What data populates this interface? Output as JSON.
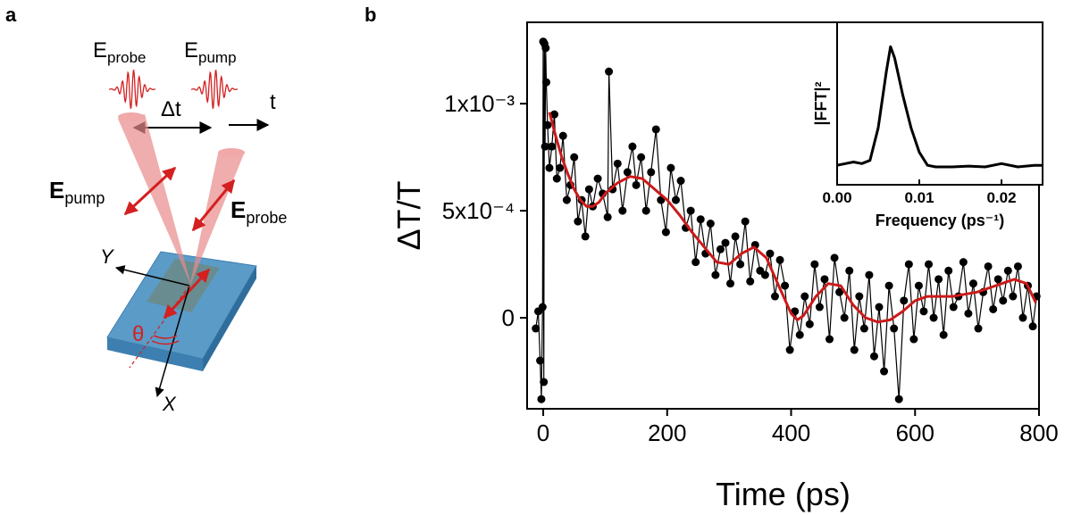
{
  "panel_a": {
    "label": "a",
    "probe_pulse": {
      "symbol": "E",
      "sub": "probe"
    },
    "pump_pulse": {
      "symbol": "E",
      "sub": "pump"
    },
    "delay": "Δt",
    "time": "t",
    "pump_field": {
      "symbol": "E",
      "sub": "pump"
    },
    "probe_field": {
      "symbol": "E",
      "sub": "probe"
    },
    "axis_y": "Y",
    "axis_x": "X",
    "angle": "θ"
  },
  "panel_b": {
    "label": "b"
  },
  "chart_data": [
    {
      "type": "line",
      "x_label": "Time (ps)",
      "y_label": "ΔT/T",
      "xlim": [
        -26,
        800
      ],
      "xticks": [
        0,
        200,
        400,
        600,
        800
      ],
      "ylim": [
        -0.000425,
        0.00138
      ],
      "yticks": [
        {
          "value": 0,
          "label": "0"
        },
        {
          "value": 0.0005,
          "label": "5x10⁻⁴"
        },
        {
          "value": 0.001,
          "label": "1x10⁻³"
        }
      ],
      "series": [
        {
          "color": "#000000",
          "markers": true,
          "x": [
            -12,
            -8,
            -5,
            -3,
            -1,
            0,
            1,
            2,
            3,
            4,
            5,
            7,
            10,
            14,
            18,
            22,
            27,
            32,
            38,
            44,
            50,
            56,
            62,
            68,
            74,
            80,
            88,
            96,
            104,
            106,
            112,
            120,
            128,
            136,
            144,
            150,
            158,
            166,
            174,
            182,
            190,
            198,
            206,
            214,
            222,
            230,
            238,
            246,
            254,
            262,
            270,
            278,
            286,
            294,
            302,
            310,
            318,
            326,
            334,
            342,
            350,
            358,
            366,
            374,
            382,
            390,
            398,
            406,
            414,
            422,
            430,
            438,
            446,
            454,
            462,
            470,
            478,
            486,
            494,
            502,
            510,
            518,
            526,
            534,
            542,
            550,
            558,
            566,
            574,
            582,
            590,
            598,
            606,
            614,
            622,
            630,
            638,
            646,
            654,
            662,
            670,
            678,
            686,
            694,
            702,
            710,
            718,
            726,
            734,
            742,
            750,
            758,
            766,
            774,
            782,
            790,
            796
          ],
          "values": [
            -5e-05,
            3e-05,
            -0.0002,
            -0.00038,
            5e-05,
            0.00129,
            -0.0003,
            0.00128,
            0.0008,
            0.00126,
            0.0011,
            0.0009,
            0.0007,
            0.0008,
            0.00095,
            0.00065,
            0.0007,
            0.00085,
            0.00055,
            0.00062,
            0.00075,
            0.00045,
            0.00055,
            0.00038,
            0.0006,
            0.00052,
            0.00065,
            0.00058,
            0.00047,
            0.00115,
            0.0006,
            0.00072,
            0.0005,
            0.00068,
            0.0008,
            0.00062,
            0.00075,
            0.0005,
            0.00068,
            0.00088,
            0.00055,
            0.0004,
            0.0007,
            0.00055,
            0.00064,
            0.00042,
            0.0005,
            0.00026,
            0.00046,
            0.0003,
            0.00044,
            0.0002,
            0.00032,
            0.00035,
            0.00016,
            0.00038,
            0.00025,
            0.00045,
            0.00017,
            0.00034,
            0.00022,
            0.0002,
            0.0003,
            0.0001,
            0.00027,
            0.00015,
            -0.00015,
            3e-05,
            -8e-05,
            0.0001,
            -3e-05,
            0.00025,
            5e-05,
            0.00018,
            -0.0001,
            0.00028,
            0.00012,
            0.0,
            0.00022,
            -0.00015,
            0.0001,
            -5e-05,
            0.0002,
            -0.00018,
            5e-05,
            -0.00025,
            0.00015,
            -5e-05,
            -0.00038,
            8e-05,
            0.00025,
            -0.0001,
            0.00015,
            3e-05,
            0.00025,
            0.0,
            0.00018,
            -8e-05,
            0.00022,
            5e-05,
            0.0001,
            0.00026,
            2e-05,
            0.00016,
            -5e-05,
            0.00012,
            0.00024,
            4e-05,
            0.00018,
            8e-05,
            0.00022,
            0.0001,
            0.00024,
            0.0,
            0.00015,
            -4e-05,
            0.0001
          ]
        },
        {
          "color": "#cc1a1a",
          "markers": false,
          "x": [
            10,
            20,
            30,
            40,
            50,
            60,
            70,
            80,
            90,
            100,
            120,
            140,
            160,
            180,
            200,
            220,
            240,
            260,
            280,
            300,
            320,
            340,
            360,
            380,
            400,
            410,
            420,
            440,
            460,
            480,
            500,
            520,
            540,
            560,
            580,
            600,
            620,
            640,
            660,
            680,
            700,
            720,
            740,
            760,
            780,
            795
          ],
          "values": [
            0.00096,
            0.00085,
            0.00075,
            0.00067,
            0.0006,
            0.00055,
            0.00052,
            0.00052,
            0.00054,
            0.00058,
            0.00063,
            0.00066,
            0.00065,
            0.0006,
            0.00055,
            0.00048,
            0.0004,
            0.00033,
            0.00026,
            0.00025,
            0.0003,
            0.00033,
            0.00028,
            0.00015,
            2e-05,
            -1e-05,
            1e-05,
            0.0001,
            0.00016,
            0.00015,
            6e-05,
            0.0,
            -2e-05,
            -1e-05,
            3e-05,
            8e-05,
            0.0001,
            0.0001,
            0.0001,
            0.00011,
            0.00012,
            0.00014,
            0.00016,
            0.00018,
            0.00016,
            7e-05
          ]
        }
      ]
    },
    {
      "type": "line",
      "x_label": "Frequency (ps⁻¹)",
      "y_label": "|FFT|²",
      "xlim": [
        0,
        0.025
      ],
      "xticks": [
        {
          "value": 0,
          "label": "0.00"
        },
        {
          "value": 0.01,
          "label": "0.01"
        },
        {
          "value": 0.02,
          "label": "0.02"
        }
      ],
      "ylim": [
        0,
        1
      ],
      "series": [
        {
          "color": "#000000",
          "markers": false,
          "x": [
            0,
            0.001,
            0.002,
            0.003,
            0.004,
            0.005,
            0.006,
            0.0065,
            0.007,
            0.008,
            0.009,
            0.01,
            0.011,
            0.012,
            0.014,
            0.016,
            0.018,
            0.02,
            0.022,
            0.024,
            0.025
          ],
          "values": [
            0.12,
            0.13,
            0.14,
            0.13,
            0.15,
            0.35,
            0.7,
            0.85,
            0.78,
            0.55,
            0.35,
            0.2,
            0.12,
            0.11,
            0.11,
            0.115,
            0.11,
            0.13,
            0.11,
            0.12,
            0.12
          ]
        }
      ]
    }
  ]
}
